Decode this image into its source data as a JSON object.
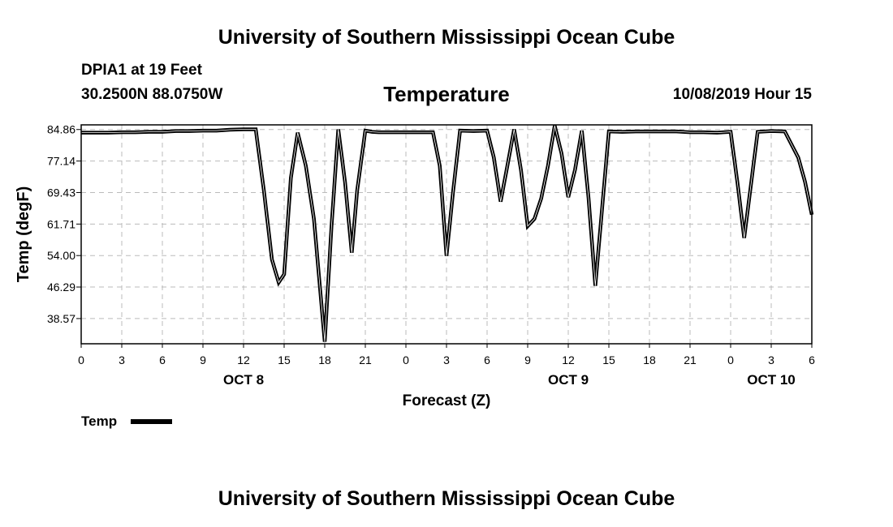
{
  "header": {
    "title_top": "University of Southern Mississippi Ocean Cube",
    "title_bottom": "University of Southern Mississippi Ocean Cube",
    "station": "DPIA1 at 19 Feet",
    "coords": "30.2500N 88.0750W",
    "chart_title": "Temperature",
    "timestamp": "10/08/2019 Hour 15"
  },
  "legend": {
    "label": "Temp",
    "color": "#000000"
  },
  "chart_data": {
    "type": "line",
    "title": "Temperature",
    "xlabel": "Forecast (Z)",
    "ylabel": "Temp (degF)",
    "x_unit": "forecast hour from 00Z Oct 8",
    "xlim": [
      0,
      54
    ],
    "ylim": [
      32.4,
      86.0
    ],
    "grid": true,
    "yticks": [
      "84.86",
      "77.14",
      "69.43",
      "61.71",
      "54.00",
      "46.29",
      "38.57"
    ],
    "xticks": [
      "0",
      "3",
      "6",
      "9",
      "12",
      "15",
      "18",
      "21",
      "0",
      "3",
      "6",
      "9",
      "12",
      "15",
      "18",
      "21",
      "0",
      "3",
      "6"
    ],
    "day_labels": [
      {
        "label": "OCT 8",
        "hour": 12
      },
      {
        "label": "OCT 9",
        "hour": 36
      },
      {
        "label": "OCT 10",
        "hour": 51
      }
    ],
    "series": [
      {
        "name": "Temp",
        "x": [
          0,
          1,
          2,
          3,
          4,
          5,
          6,
          7,
          8,
          9,
          10,
          11,
          12,
          12.9,
          13.5,
          14.1,
          14.6,
          15,
          15.5,
          16,
          16.6,
          17.2,
          18,
          18.5,
          19,
          19.5,
          20,
          20.4,
          21,
          21.5,
          22,
          23,
          24,
          25,
          26,
          26.5,
          27,
          27.5,
          28,
          29,
          30,
          30.5,
          31,
          31.5,
          32,
          32.5,
          33,
          33.5,
          34,
          34.5,
          35,
          35.5,
          36,
          36.5,
          37,
          37.5,
          38,
          39,
          40,
          41,
          42,
          43,
          44,
          45,
          46,
          47,
          48,
          48.5,
          49,
          50,
          51,
          52,
          53,
          53.5,
          54
        ],
        "values": [
          84.1,
          84.1,
          84.1,
          84.2,
          84.2,
          84.3,
          84.3,
          84.5,
          84.5,
          84.6,
          84.6,
          84.8,
          84.9,
          84.9,
          70.0,
          53.0,
          47.4,
          49.4,
          73.0,
          84.1,
          76.0,
          63.0,
          32.9,
          61.0,
          84.9,
          72.0,
          54.7,
          70.0,
          84.6,
          84.3,
          84.2,
          84.2,
          84.2,
          84.2,
          84.2,
          76.0,
          53.9,
          70.0,
          84.6,
          84.5,
          84.6,
          78.0,
          67.2,
          76.0,
          84.9,
          75.0,
          61.2,
          63.0,
          68.0,
          76.0,
          85.8,
          79.0,
          68.3,
          75.0,
          84.6,
          68.0,
          46.6,
          84.4,
          84.3,
          84.4,
          84.4,
          84.4,
          84.4,
          84.2,
          84.2,
          84.1,
          84.3,
          72.0,
          58.3,
          84.3,
          84.5,
          84.4,
          78.0,
          72.0,
          64.0
        ]
      }
    ]
  }
}
